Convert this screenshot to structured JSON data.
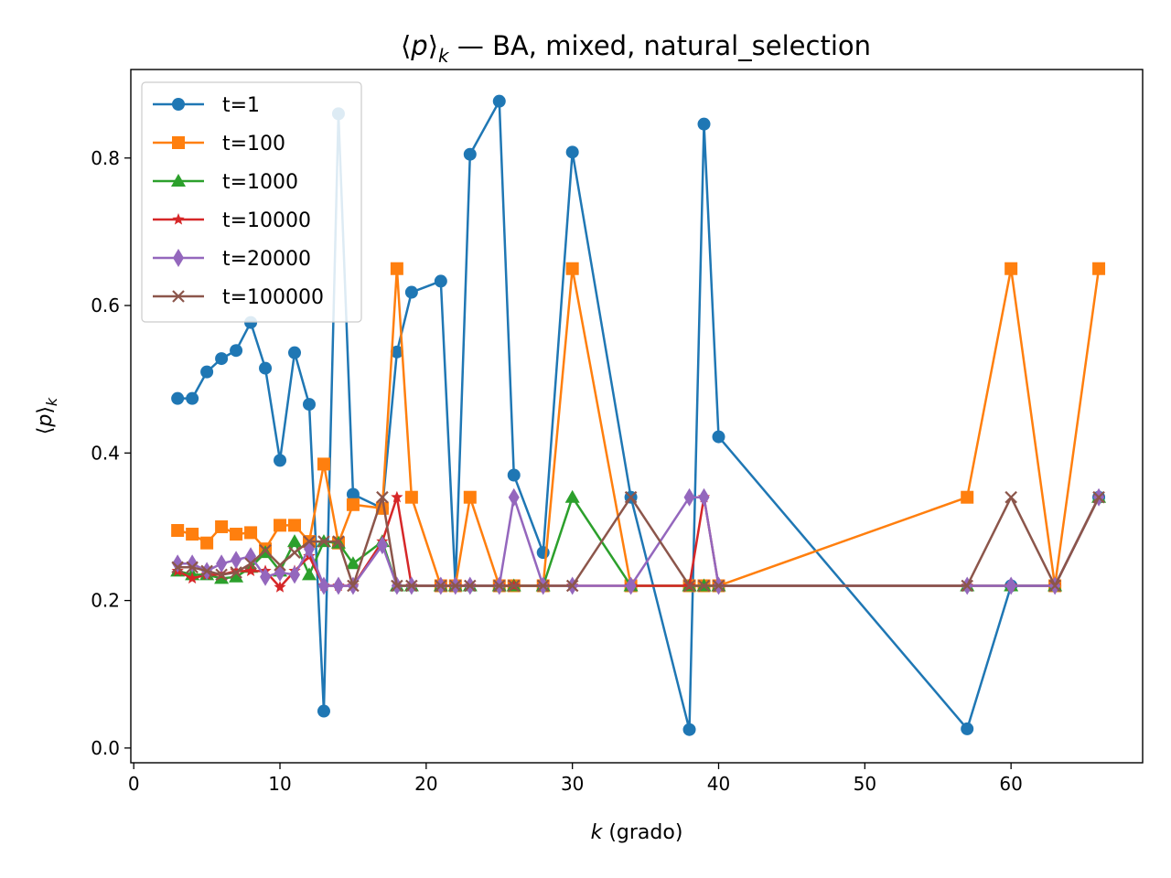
{
  "chart_data": {
    "type": "line",
    "title": "⟨p⟩k — BA, mixed, natural_selection",
    "title_parts": {
      "bracket_open": "⟨",
      "var": "p",
      "bracket_close": "⟩",
      "sub": "k",
      "rest": " — BA, mixed, natural_selection"
    },
    "xlabel": "k (grado)",
    "xlabel_parts": {
      "var": "k",
      "rest": " (grado)"
    },
    "ylabel": "⟨p⟩k",
    "xlim": [
      -0.2,
      69
    ],
    "ylim": [
      -0.02,
      0.92
    ],
    "xticks": [
      0,
      10,
      20,
      30,
      40,
      50,
      60
    ],
    "yticks": [
      0.0,
      0.2,
      0.4,
      0.6,
      0.8
    ],
    "xtick_labels": [
      "0",
      "10",
      "20",
      "30",
      "40",
      "50",
      "60"
    ],
    "ytick_labels": [
      "0.0",
      "0.2",
      "0.4",
      "0.6",
      "0.8"
    ],
    "grid": false,
    "legend_position": "top-left",
    "series": [
      {
        "name": "t=1",
        "color": "#1f77b4",
        "marker": "circle",
        "x": [
          3,
          4,
          5,
          6,
          7,
          8,
          9,
          10,
          11,
          12,
          13,
          14,
          15,
          17,
          18,
          19,
          21,
          22,
          23,
          25,
          26,
          28,
          30,
          34,
          38,
          39,
          40,
          57,
          60,
          63,
          66
        ],
        "y": [
          0.474,
          0.474,
          0.51,
          0.528,
          0.539,
          0.577,
          0.515,
          0.39,
          0.536,
          0.466,
          0.05,
          0.86,
          0.344,
          0.325,
          0.537,
          0.618,
          0.633,
          0.22,
          0.805,
          0.877,
          0.37,
          0.265,
          0.808,
          0.34,
          0.025,
          0.846,
          0.422,
          0.026,
          0.22,
          0.22,
          0.34
        ]
      },
      {
        "name": "t=100",
        "color": "#ff7f0e",
        "marker": "square",
        "x": [
          3,
          4,
          5,
          6,
          7,
          8,
          9,
          10,
          11,
          12,
          13,
          14,
          15,
          17,
          18,
          19,
          21,
          22,
          23,
          25,
          26,
          28,
          30,
          34,
          38,
          39,
          40,
          57,
          60,
          63,
          66
        ],
        "y": [
          0.295,
          0.29,
          0.278,
          0.3,
          0.29,
          0.292,
          0.27,
          0.302,
          0.302,
          0.28,
          0.385,
          0.278,
          0.33,
          0.325,
          0.65,
          0.34,
          0.22,
          0.22,
          0.34,
          0.22,
          0.22,
          0.22,
          0.65,
          0.22,
          0.22,
          0.22,
          0.22,
          0.34,
          0.65,
          0.22,
          0.65
        ]
      },
      {
        "name": "t=1000",
        "color": "#2ca02c",
        "marker": "triangle",
        "x": [
          3,
          4,
          5,
          6,
          7,
          8,
          9,
          10,
          11,
          12,
          13,
          14,
          15,
          17,
          18,
          19,
          21,
          22,
          23,
          25,
          26,
          28,
          30,
          34,
          38,
          39,
          40,
          57,
          60,
          63,
          66
        ],
        "y": [
          0.24,
          0.235,
          0.235,
          0.23,
          0.232,
          0.245,
          0.265,
          0.24,
          0.28,
          0.235,
          0.28,
          0.278,
          0.25,
          0.28,
          0.22,
          0.22,
          0.22,
          0.22,
          0.22,
          0.22,
          0.22,
          0.22,
          0.34,
          0.22,
          0.22,
          0.22,
          0.22,
          0.22,
          0.22,
          0.22,
          0.34
        ]
      },
      {
        "name": "t=10000",
        "color": "#d62728",
        "marker": "star",
        "x": [
          3,
          4,
          5,
          6,
          7,
          8,
          9,
          10,
          11,
          12,
          13,
          14,
          15,
          17,
          18,
          19,
          21,
          22,
          23,
          25,
          26,
          28,
          30,
          34,
          38,
          39,
          40,
          57,
          60,
          63,
          66
        ],
        "y": [
          0.24,
          0.23,
          0.235,
          0.235,
          0.24,
          0.24,
          0.24,
          0.218,
          0.24,
          0.26,
          0.22,
          0.22,
          0.22,
          0.28,
          0.34,
          0.22,
          0.22,
          0.22,
          0.22,
          0.22,
          0.22,
          0.22,
          0.22,
          0.22,
          0.22,
          0.34,
          0.22,
          0.22,
          0.22,
          0.22,
          0.34
        ]
      },
      {
        "name": "t=20000",
        "color": "#9467bd",
        "marker": "diamond",
        "x": [
          3,
          4,
          5,
          6,
          7,
          8,
          9,
          10,
          11,
          12,
          13,
          14,
          15,
          17,
          18,
          19,
          21,
          22,
          23,
          25,
          26,
          28,
          30,
          34,
          38,
          39,
          40,
          57,
          60,
          63,
          66
        ],
        "y": [
          0.25,
          0.25,
          0.24,
          0.25,
          0.255,
          0.26,
          0.232,
          0.238,
          0.235,
          0.27,
          0.22,
          0.22,
          0.22,
          0.275,
          0.22,
          0.22,
          0.22,
          0.22,
          0.22,
          0.22,
          0.34,
          0.22,
          0.22,
          0.22,
          0.34,
          0.34,
          0.22,
          0.22,
          0.22,
          0.22,
          0.34
        ]
      },
      {
        "name": "t=100000",
        "color": "#8c564b",
        "marker": "x",
        "x": [
          3,
          4,
          5,
          6,
          7,
          8,
          9,
          10,
          11,
          12,
          13,
          14,
          15,
          17,
          18,
          19,
          21,
          22,
          23,
          25,
          26,
          28,
          30,
          34,
          38,
          39,
          40,
          57,
          60,
          63,
          66
        ],
        "y": [
          0.245,
          0.245,
          0.24,
          0.235,
          0.238,
          0.25,
          0.268,
          0.248,
          0.265,
          0.28,
          0.28,
          0.28,
          0.22,
          0.34,
          0.22,
          0.22,
          0.22,
          0.22,
          0.22,
          0.22,
          0.22,
          0.22,
          0.22,
          0.34,
          0.22,
          0.22,
          0.22,
          0.22,
          0.34,
          0.22,
          0.34
        ]
      }
    ]
  }
}
